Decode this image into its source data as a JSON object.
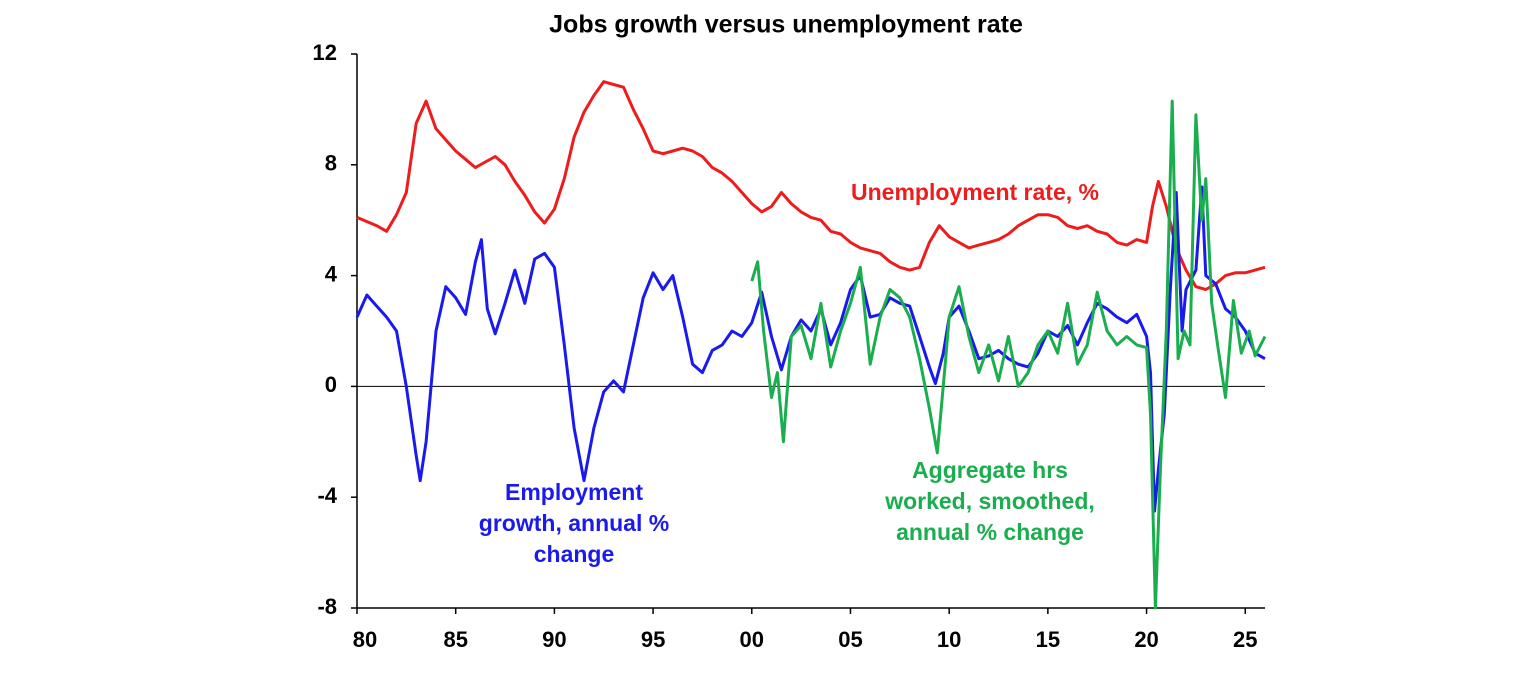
{
  "chart_data": {
    "type": "line",
    "title": "Jobs growth versus unemployment rate",
    "xlim": [
      1980,
      2026
    ],
    "xticks": [
      {
        "value": 1980,
        "label": "80"
      },
      {
        "value": 1985,
        "label": "85"
      },
      {
        "value": 1990,
        "label": "90"
      },
      {
        "value": 1995,
        "label": "95"
      },
      {
        "value": 2000,
        "label": "00"
      },
      {
        "value": 2005,
        "label": "05"
      },
      {
        "value": 2010,
        "label": "10"
      },
      {
        "value": 2015,
        "label": "15"
      },
      {
        "value": 2020,
        "label": "20"
      },
      {
        "value": 2025,
        "label": "25"
      }
    ],
    "ylim": [
      -8,
      12
    ],
    "yticks": [
      -8,
      -4,
      0,
      4,
      8,
      12
    ],
    "series": [
      {
        "name": "Unemployment rate, %",
        "color": "#ee1c1c",
        "x": [
          1980,
          1981,
          1981.5,
          1982,
          1982.5,
          1983,
          1983.5,
          1984,
          1984.5,
          1985,
          1985.5,
          1986,
          1986.5,
          1987,
          1987.5,
          1988,
          1988.5,
          1989,
          1989.5,
          1990,
          1990.5,
          1991,
          1991.5,
          1992,
          1992.5,
          1993,
          1993.5,
          1994,
          1994.5,
          1995,
          1995.5,
          1996,
          1996.5,
          1997,
          1997.5,
          1998,
          1998.5,
          1999,
          1999.5,
          2000,
          2000.5,
          2001,
          2001.5,
          2002,
          2002.5,
          2003,
          2003.5,
          2004,
          2004.5,
          2005,
          2005.5,
          2006,
          2006.5,
          2007,
          2007.5,
          2008,
          2008.5,
          2009,
          2009.5,
          2010,
          2010.5,
          2011,
          2011.5,
          2012,
          2012.5,
          2013,
          2013.5,
          2014,
          2014.5,
          2015,
          2015.5,
          2016,
          2016.5,
          2017,
          2017.5,
          2018,
          2018.5,
          2019,
          2019.5,
          2020,
          2020.3,
          2020.6,
          2021,
          2021.5,
          2022,
          2022.5,
          2023,
          2023.5,
          2024,
          2024.5,
          2025,
          2025.5,
          2026
        ],
        "values": [
          6.1,
          5.8,
          5.6,
          6.2,
          7.0,
          9.5,
          10.3,
          9.3,
          8.9,
          8.5,
          8.2,
          7.9,
          8.1,
          8.3,
          8.0,
          7.4,
          6.9,
          6.3,
          5.9,
          6.4,
          7.5,
          9.0,
          9.9,
          10.5,
          11.0,
          10.9,
          10.8,
          10.0,
          9.3,
          8.5,
          8.4,
          8.5,
          8.6,
          8.5,
          8.3,
          7.9,
          7.7,
          7.4,
          7.0,
          6.6,
          6.3,
          6.5,
          7.0,
          6.6,
          6.3,
          6.1,
          6.0,
          5.6,
          5.5,
          5.2,
          5.0,
          4.9,
          4.8,
          4.5,
          4.3,
          4.2,
          4.3,
          5.2,
          5.8,
          5.4,
          5.2,
          5.0,
          5.1,
          5.2,
          5.3,
          5.5,
          5.8,
          6.0,
          6.2,
          6.2,
          6.1,
          5.8,
          5.7,
          5.8,
          5.6,
          5.5,
          5.2,
          5.1,
          5.3,
          5.2,
          6.5,
          7.4,
          6.5,
          5.0,
          4.2,
          3.6,
          3.5,
          3.7,
          4.0,
          4.1,
          4.1,
          4.2,
          4.3
        ]
      },
      {
        "name": "Employment growth, annual % change",
        "color": "#1a1aee",
        "x": [
          1980,
          1980.5,
          1981,
          1981.5,
          1982,
          1982.5,
          1983,
          1983.2,
          1983.5,
          1984,
          1984.5,
          1985,
          1985.5,
          1986,
          1986.3,
          1986.6,
          1987,
          1987.5,
          1988,
          1988.5,
          1989,
          1989.5,
          1990,
          1990.5,
          1991,
          1991.5,
          1992,
          1992.5,
          1993,
          1993.5,
          1994,
          1994.5,
          1995,
          1995.5,
          1996,
          1996.5,
          1997,
          1997.5,
          1998,
          1998.5,
          1999,
          1999.5,
          2000,
          2000.5,
          2001,
          2001.5,
          2002,
          2002.5,
          2003,
          2003.5,
          2004,
          2004.5,
          2005,
          2005.5,
          2006,
          2006.5,
          2007,
          2007.5,
          2008,
          2008.5,
          2009,
          2009.3,
          2009.7,
          2010,
          2010.5,
          2011,
          2011.5,
          2012,
          2012.5,
          2013,
          2013.5,
          2014,
          2014.5,
          2015,
          2015.5,
          2016,
          2016.5,
          2017,
          2017.5,
          2018,
          2018.5,
          2019,
          2019.5,
          2020,
          2020.2,
          2020.4,
          2020.6,
          2020.9,
          2021.2,
          2021.5,
          2021.8,
          2022,
          2022.5,
          2022.8,
          2023,
          2023.5,
          2024,
          2024.5,
          2025,
          2025.5,
          2026
        ],
        "values": [
          2.5,
          3.3,
          2.9,
          2.5,
          2.0,
          0.0,
          -2.5,
          -3.4,
          -2.0,
          2.0,
          3.6,
          3.2,
          2.6,
          4.5,
          5.3,
          2.8,
          1.9,
          3.0,
          4.2,
          3.0,
          4.6,
          4.8,
          4.3,
          1.5,
          -1.5,
          -3.4,
          -1.5,
          -0.2,
          0.2,
          -0.2,
          1.5,
          3.2,
          4.1,
          3.5,
          4.0,
          2.5,
          0.8,
          0.5,
          1.3,
          1.5,
          2.0,
          1.8,
          2.3,
          3.4,
          1.8,
          0.6,
          1.8,
          2.4,
          2.0,
          2.8,
          1.5,
          2.3,
          3.5,
          4.0,
          2.5,
          2.6,
          3.2,
          3.0,
          2.9,
          1.8,
          0.7,
          0.1,
          1.2,
          2.5,
          2.9,
          2.0,
          1.0,
          1.1,
          1.3,
          1.0,
          0.8,
          0.7,
          1.2,
          2.0,
          1.8,
          2.2,
          1.5,
          2.3,
          3.0,
          2.8,
          2.5,
          2.3,
          2.6,
          1.8,
          0.5,
          -4.5,
          -3.0,
          -1.0,
          3.5,
          7.0,
          2.0,
          3.5,
          4.2,
          7.2,
          4.0,
          3.7,
          2.8,
          2.5,
          2.0,
          1.2,
          1.0
        ]
      },
      {
        "name": "Aggregate hrs worked, smoothed, annual % change",
        "color": "#1aae4e",
        "x": [
          2000,
          2000.3,
          2000.6,
          2001,
          2001.3,
          2001.6,
          2002,
          2002.5,
          2003,
          2003.5,
          2004,
          2004.5,
          2005,
          2005.5,
          2006,
          2006.5,
          2007,
          2007.5,
          2008,
          2008.5,
          2009,
          2009.4,
          2009.8,
          2010,
          2010.5,
          2011,
          2011.5,
          2012,
          2012.5,
          2013,
          2013.5,
          2014,
          2014.5,
          2015,
          2015.5,
          2016,
          2016.5,
          2017,
          2017.5,
          2018,
          2018.5,
          2019,
          2019.5,
          2020,
          2020.2,
          2020.45,
          2020.7,
          2021,
          2021.3,
          2021.6,
          2021.9,
          2022.2,
          2022.5,
          2022.8,
          2023,
          2023.3,
          2023.6,
          2024,
          2024.4,
          2024.8,
          2025.2,
          2025.5,
          2026
        ],
        "values": [
          3.8,
          4.5,
          2.0,
          -0.4,
          0.5,
          -2.0,
          1.8,
          2.2,
          1.0,
          3.0,
          0.7,
          2.0,
          3.0,
          4.3,
          0.8,
          2.5,
          3.5,
          3.2,
          2.5,
          1.0,
          -0.8,
          -2.4,
          0.8,
          2.5,
          3.6,
          1.8,
          0.5,
          1.5,
          0.2,
          1.8,
          0.0,
          0.5,
          1.5,
          2.0,
          1.2,
          3.0,
          0.8,
          1.5,
          3.4,
          2.0,
          1.5,
          1.8,
          1.5,
          1.4,
          -1.0,
          -8.0,
          -3.0,
          2.0,
          10.3,
          1.0,
          2.0,
          1.5,
          9.8,
          6.0,
          7.5,
          3.0,
          1.5,
          -0.4,
          3.1,
          1.2,
          2.0,
          1.1,
          1.8
        ]
      }
    ],
    "annotations": [
      {
        "text": "Unemployment rate, %",
        "color": "#ee1c1c"
      },
      {
        "lines": [
          "Employment",
          "growth, annual %",
          "change"
        ],
        "color": "#1a1aee"
      },
      {
        "lines": [
          "Aggregate hrs",
          "worked, smoothed,",
          "annual % change"
        ],
        "color": "#1aae4e"
      }
    ]
  }
}
